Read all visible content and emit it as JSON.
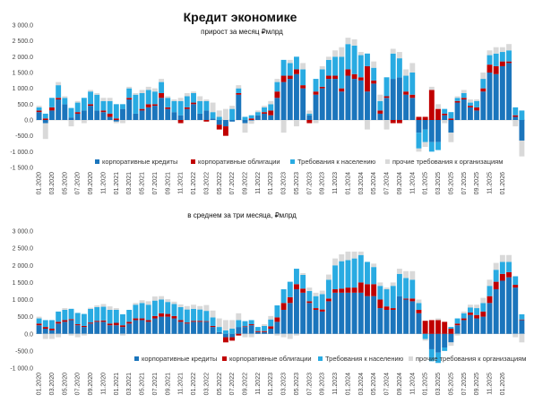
{
  "colors": {
    "corporate_loans": "#1b75bc",
    "corporate_bonds": "#c00000",
    "household_claims": "#29abe2",
    "other_org_claims": "#d9d9d9"
  },
  "chart_data": [
    {
      "type": "bar",
      "stacked": true,
      "title": "Кредит экономике",
      "subtitle": "прирост за месяц ₽млрд",
      "ylim": [
        -1500,
        3000
      ],
      "yticks": [
        -1500,
        -1000,
        -500,
        0,
        500,
        1000,
        1500,
        2000,
        2500,
        3000
      ],
      "ytick_labels": [
        "-1 500.0",
        "-1 000.0",
        "-500.0",
        "0.0",
        "500.0",
        "1 000.0",
        "1 500.0",
        "2 000.0",
        "2 500.0",
        "3 000.0"
      ],
      "grid": false,
      "legend": "bottom",
      "xtick_labels": [
        "01.2020",
        "03.2020",
        "05.2020",
        "07.2020",
        "09.2020",
        "11.2020",
        "01.2021",
        "03.2021",
        "05.2021",
        "07.2021",
        "09.2021",
        "11.2021",
        "01.2022",
        "03.2022",
        "05.2022",
        "07.2022",
        "09.2022",
        "11.2022",
        "01.2023",
        "03.2023",
        "05.2023",
        "07.2023",
        "09.2023",
        "11.2023",
        "01.2024",
        "03.2024",
        "05.2024",
        "07.2024",
        "09.2024",
        "11.2024",
        "01.2025",
        "03.2025",
        "05.2025",
        "07.2025",
        "09.2025",
        "11.2025",
        "01.2026"
      ],
      "series": [
        {
          "name": "корпоративные кредиты",
          "color_key": "corporate_loans",
          "values": [
            250,
            -100,
            300,
            650,
            500,
            80,
            200,
            300,
            450,
            300,
            250,
            100,
            -50,
            350,
            650,
            200,
            300,
            400,
            450,
            700,
            350,
            250,
            150,
            350,
            500,
            200,
            300,
            50,
            -150,
            -200,
            -50,
            800,
            -100,
            -20,
            150,
            200,
            150,
            700,
            1200,
            1300,
            1450,
            1000,
            150,
            800,
            1000,
            1300,
            1300,
            900,
            1400,
            1300,
            1250,
            900,
            1150,
            200,
            700,
            1300,
            1350,
            800,
            700,
            -400,
            -300,
            -700,
            -700,
            150,
            -400,
            550,
            650,
            400,
            300,
            900,
            1500,
            1450,
            1700,
            1800,
            100,
            -650
          ]
        },
        {
          "name": "корпоративные облигации",
          "color_key": "corporate_bonds",
          "values": [
            50,
            50,
            100,
            50,
            0,
            0,
            50,
            0,
            50,
            0,
            50,
            100,
            50,
            0,
            50,
            0,
            50,
            100,
            50,
            150,
            50,
            0,
            -100,
            50,
            50,
            0,
            -50,
            0,
            -150,
            -300,
            0,
            50,
            0,
            50,
            0,
            50,
            150,
            200,
            200,
            100,
            150,
            100,
            -100,
            100,
            50,
            100,
            100,
            100,
            200,
            150,
            100,
            800,
            100,
            100,
            50,
            -100,
            -100,
            100,
            100,
            100,
            100,
            950,
            350,
            50,
            50,
            50,
            50,
            50,
            100,
            100,
            250,
            250,
            150,
            50,
            50,
            0
          ]
        },
        {
          "name": "Требования к населению",
          "color_key": "household_claims",
          "values": [
            100,
            150,
            300,
            400,
            200,
            300,
            300,
            400,
            400,
            500,
            300,
            400,
            450,
            150,
            300,
            600,
            500,
            450,
            400,
            350,
            300,
            350,
            450,
            350,
            300,
            400,
            300,
            200,
            100,
            0,
            350,
            150,
            100,
            100,
            100,
            150,
            200,
            300,
            500,
            400,
            400,
            500,
            50,
            400,
            550,
            500,
            600,
            1000,
            800,
            900,
            700,
            400,
            400,
            300,
            600,
            800,
            600,
            500,
            700,
            -500,
            -400,
            -300,
            -250,
            150,
            200,
            100,
            150,
            100,
            200,
            300,
            300,
            400,
            300,
            350,
            250,
            300
          ]
        },
        {
          "name": "прочие требования к организациям",
          "color_key": "other_org_claims",
          "values": [
            50,
            -500,
            0,
            100,
            50,
            -200,
            50,
            -100,
            50,
            50,
            100,
            100,
            -50,
            -100,
            50,
            50,
            100,
            100,
            100,
            100,
            50,
            50,
            100,
            100,
            50,
            150,
            50,
            300,
            200,
            350,
            100,
            100,
            -300,
            -100,
            50,
            50,
            100,
            100,
            -400,
            100,
            -200,
            200,
            100,
            -100,
            100,
            100,
            200,
            300,
            200,
            200,
            100,
            -300,
            200,
            200,
            -300,
            150,
            200,
            200,
            300,
            -100,
            -150,
            100,
            150,
            -100,
            -300,
            50,
            100,
            100,
            50,
            200,
            150,
            200,
            150,
            200,
            -200,
            -500
          ]
        }
      ]
    },
    {
      "type": "bar",
      "stacked": true,
      "subtitle": "в среднем за три месяца, ₽млрд",
      "ylim": [
        -1000,
        3000
      ],
      "yticks": [
        -1000,
        -500,
        0,
        500,
        1000,
        1500,
        2000,
        2500,
        3000
      ],
      "ytick_labels": [
        "-1 000.0",
        "-500.0",
        "0.0",
        "500.0",
        "1 000.0",
        "1 500.0",
        "2 000.0",
        "2 500.0",
        "3 000.0"
      ],
      "grid": false,
      "legend": "bottom",
      "xtick_labels": [
        "01.2020",
        "03.2020",
        "05.2020",
        "07.2020",
        "09.2020",
        "11.2020",
        "01.2021",
        "03.2021",
        "05.2021",
        "07.2021",
        "09.2021",
        "11.2021",
        "01.2022",
        "03.2022",
        "05.2022",
        "07.2022",
        "09.2022",
        "11.2022",
        "01.2023",
        "03.2023",
        "05.2023",
        "07.2023",
        "09.2023",
        "11.2023",
        "01.2024",
        "03.2024",
        "05.2024",
        "07.2024",
        "09.2024",
        "11.2024",
        "01.2025",
        "03.2025",
        "05.2025",
        "07.2025",
        "09.2025",
        "11.2025",
        "01.2026"
      ],
      "series": [
        {
          "name": "корпоративные кредиты",
          "color_key": "corporate_loans",
          "values": [
            250,
            150,
            100,
            300,
            350,
            400,
            250,
            200,
            300,
            350,
            350,
            250,
            250,
            200,
            300,
            400,
            400,
            350,
            450,
            500,
            500,
            450,
            350,
            300,
            350,
            350,
            350,
            200,
            50,
            -100,
            -100,
            200,
            200,
            250,
            50,
            50,
            150,
            350,
            700,
            900,
            1300,
            1200,
            900,
            700,
            650,
            950,
            1200,
            1200,
            1200,
            1200,
            1200,
            1100,
            1100,
            750,
            700,
            700,
            1100,
            1000,
            950,
            600,
            0,
            -450,
            -550,
            -400,
            -250,
            250,
            400,
            550,
            450,
            500,
            900,
            1300,
            1550,
            1650,
            1350,
            400
          ]
        },
        {
          "name": "корпоративные облигации",
          "color_key": "corporate_bonds",
          "values": [
            50,
            50,
            50,
            50,
            50,
            30,
            30,
            30,
            30,
            30,
            40,
            50,
            70,
            50,
            50,
            50,
            50,
            50,
            70,
            100,
            80,
            70,
            50,
            30,
            30,
            30,
            20,
            30,
            0,
            -150,
            -100,
            -50,
            20,
            30,
            30,
            30,
            70,
            130,
            200,
            170,
            150,
            120,
            50,
            50,
            60,
            80,
            100,
            120,
            150,
            150,
            300,
            350,
            350,
            250,
            100,
            50,
            0,
            30,
            80,
            100,
            380,
            400,
            400,
            350,
            150,
            50,
            50,
            70,
            100,
            150,
            200,
            220,
            200,
            150,
            80,
            20
          ]
        },
        {
          "name": "Требования к населению",
          "color_key": "household_claims",
          "values": [
            150,
            200,
            250,
            300,
            300,
            300,
            330,
            350,
            400,
            400,
            400,
            400,
            380,
            320,
            350,
            400,
            450,
            450,
            450,
            400,
            350,
            350,
            380,
            380,
            350,
            330,
            300,
            250,
            150,
            100,
            150,
            200,
            150,
            120,
            120,
            150,
            200,
            350,
            400,
            450,
            450,
            400,
            300,
            350,
            450,
            550,
            700,
            800,
            800,
            850,
            800,
            650,
            500,
            400,
            500,
            650,
            650,
            600,
            550,
            200,
            -150,
            -350,
            -300,
            -100,
            50,
            150,
            150,
            150,
            200,
            250,
            300,
            350,
            350,
            300,
            250,
            150
          ]
        },
        {
          "name": "прочие требования к организациям",
          "color_key": "other_org_claims",
          "values": [
            50,
            -150,
            -150,
            -100,
            50,
            -50,
            -100,
            -50,
            30,
            50,
            80,
            100,
            50,
            -50,
            0,
            50,
            80,
            100,
            120,
            100,
            80,
            70,
            80,
            100,
            120,
            100,
            170,
            200,
            250,
            300,
            250,
            200,
            -100,
            -100,
            0,
            50,
            100,
            -50,
            -100,
            -150,
            -50,
            50,
            100,
            100,
            100,
            150,
            200,
            200,
            250,
            200,
            100,
            0,
            100,
            100,
            50,
            100,
            150,
            200,
            250,
            100,
            -50,
            0,
            50,
            0,
            -100,
            -50,
            50,
            80,
            100,
            150,
            180,
            200,
            200,
            200,
            -100,
            -250
          ]
        }
      ]
    }
  ]
}
